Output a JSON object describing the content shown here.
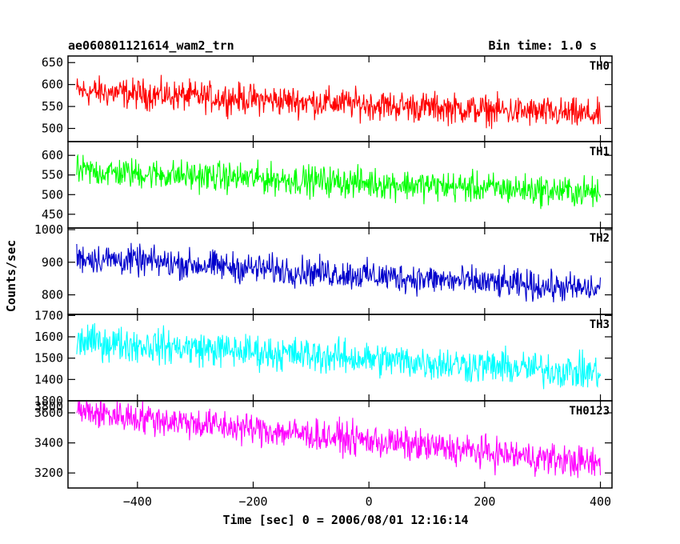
{
  "header": {
    "title": "ae060801121614_wam2_trn",
    "bin_time": "Bin time: 1.0 s"
  },
  "axes": {
    "xlabel": "Time [sec] 0 = 2006/08/01 12:16:14",
    "ylabel": "Counts/sec",
    "xlim": [
      -520,
      420
    ],
    "xticks": [
      -400,
      -200,
      0,
      200,
      400
    ],
    "xtick_labels": [
      "−400",
      "−200",
      "0",
      "200",
      "400"
    ]
  },
  "chart_data": [
    {
      "type": "line",
      "panel": "TH0",
      "label": "TH0",
      "color": "#ff0000",
      "ylim": [
        470,
        665
      ],
      "yticks": [
        500,
        550,
        600,
        650
      ],
      "ytick_labels": [
        "500",
        "550",
        "600",
        "650"
      ],
      "x_range": [
        -505,
        400
      ],
      "trend": {
        "start": 585,
        "end": 530
      },
      "noise_amplitude": 34
    },
    {
      "type": "line",
      "panel": "TH1",
      "label": "TH1",
      "color": "#00ff00",
      "ylim": [
        415,
        635
      ],
      "yticks": [
        450,
        500,
        550,
        600
      ],
      "ytick_labels": [
        "450",
        "500",
        "550",
        "600"
      ],
      "x_range": [
        -505,
        400
      ],
      "trend": {
        "start": 560,
        "end": 505
      },
      "noise_amplitude": 38
    },
    {
      "type": "line",
      "panel": "TH2",
      "label": "TH2",
      "color": "#0000cc",
      "ylim": [
        740,
        1005
      ],
      "yticks": [
        800,
        900,
        1000
      ],
      "ytick_labels": [
        "800",
        "900",
        "1000"
      ],
      "x_range": [
        -505,
        400
      ],
      "trend": {
        "start": 915,
        "end": 815
      },
      "noise_amplitude": 45
    },
    {
      "type": "line",
      "panel": "TH3",
      "label": "TH3",
      "color": "#00ffff",
      "ylim": [
        1300,
        1705
      ],
      "yticks": [
        1400,
        1500,
        1600,
        1700
      ],
      "ytick_labels": [
        "1400",
        "1500",
        "1600",
        "1700"
      ],
      "overlap_label": "1800",
      "x_range": [
        -505,
        400
      ],
      "trend": {
        "start": 1580,
        "end": 1430
      },
      "noise_amplitude": 80
    },
    {
      "type": "line",
      "panel": "TH0123",
      "label": "TH0123",
      "color": "#ff00ff",
      "ylim": [
        3100,
        3680
      ],
      "yticks": [
        3200,
        3400,
        3600
      ],
      "ytick_labels": [
        "3200",
        "3400",
        "3600"
      ],
      "top_label": "3800",
      "x_range": [
        -505,
        400
      ],
      "trend": {
        "start": 3610,
        "end": 3260
      },
      "noise_amplitude": 105
    }
  ]
}
